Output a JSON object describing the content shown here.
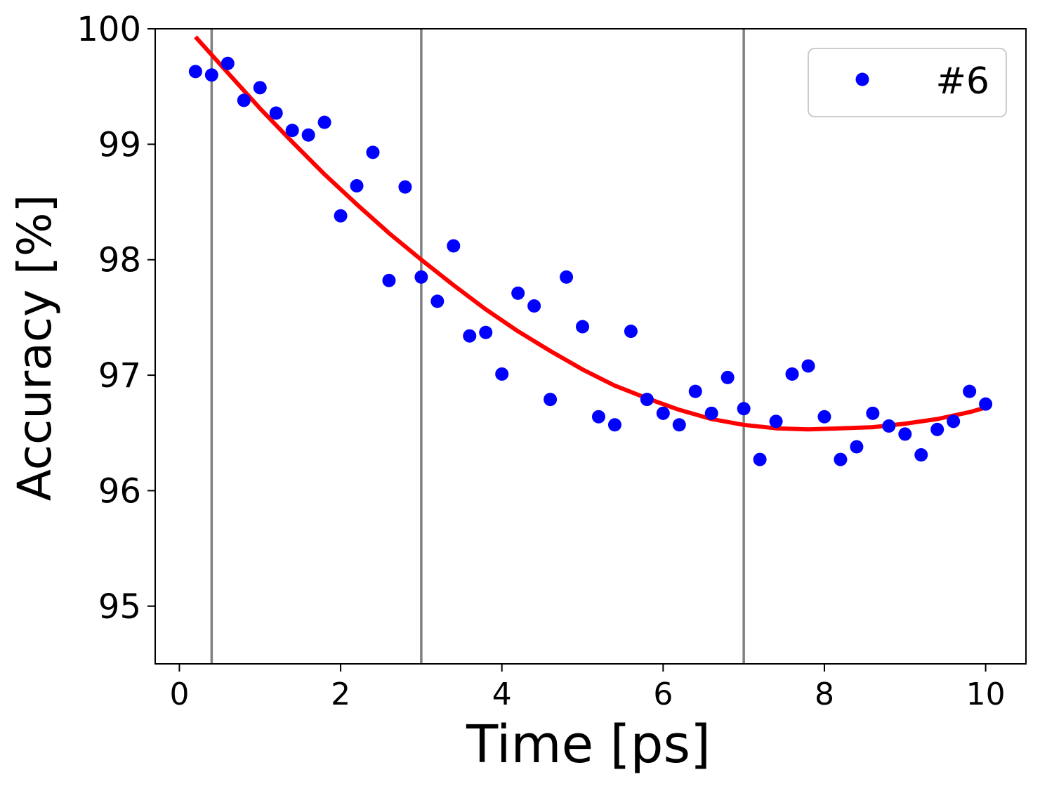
{
  "chart_data": {
    "type": "scatter",
    "xlabel": "Time [ps]",
    "ylabel": "Accuracy [%]",
    "xlim": [
      -0.3,
      10.5
    ],
    "ylim": [
      94.5,
      100
    ],
    "xticks": [
      0,
      2,
      4,
      6,
      8,
      10
    ],
    "yticks": [
      95,
      96,
      97,
      98,
      99,
      100
    ],
    "grid": false,
    "legend_position": "top-right",
    "vertical_lines": {
      "x": [
        0.4,
        3,
        7
      ],
      "color": "#808080"
    },
    "series": [
      {
        "name": "#6",
        "type": "scatter",
        "color": "#0000ff",
        "x": [
          0.2,
          0.4,
          0.6,
          0.8,
          1.0,
          1.2,
          1.4,
          1.6,
          1.8,
          2.0,
          2.2,
          2.4,
          2.6,
          2.8,
          3.0,
          3.2,
          3.4,
          3.6,
          3.8,
          4.0,
          4.2,
          4.4,
          4.6,
          4.8,
          5.0,
          5.2,
          5.4,
          5.6,
          5.8,
          6.0,
          6.2,
          6.4,
          6.6,
          6.8,
          7.0,
          7.2,
          7.4,
          7.6,
          7.8,
          8.0,
          8.2,
          8.4,
          8.6,
          8.8,
          9.0,
          9.2,
          9.4,
          9.6,
          9.8,
          10.0
        ],
        "y": [
          99.63,
          99.6,
          99.7,
          99.38,
          99.49,
          99.27,
          99.12,
          99.08,
          99.19,
          98.38,
          98.64,
          98.93,
          97.82,
          98.63,
          97.85,
          97.64,
          98.12,
          97.34,
          97.37,
          97.01,
          97.71,
          97.6,
          96.79,
          97.85,
          97.42,
          96.64,
          96.57,
          97.38,
          96.79,
          96.67,
          96.57,
          96.86,
          96.67,
          96.98,
          96.71,
          96.27,
          96.6,
          97.01,
          97.08,
          96.64,
          96.27,
          96.38,
          96.67,
          96.56,
          96.49,
          96.31,
          96.53,
          96.6,
          96.86,
          96.75
        ]
      },
      {
        "type": "line",
        "color": "#ff0000",
        "x": [
          0.2,
          0.6,
          1.0,
          1.4,
          1.8,
          2.2,
          2.6,
          3.0,
          3.4,
          3.8,
          4.2,
          4.6,
          5.0,
          5.4,
          5.8,
          6.2,
          6.6,
          7.0,
          7.4,
          7.8,
          8.2,
          8.6,
          9.0,
          9.4,
          9.8,
          10.0
        ],
        "y": [
          99.93,
          99.62,
          99.31,
          99.02,
          98.74,
          98.48,
          98.23,
          98.0,
          97.78,
          97.57,
          97.38,
          97.21,
          97.05,
          96.91,
          96.8,
          96.7,
          96.62,
          96.57,
          96.54,
          96.53,
          96.54,
          96.55,
          96.58,
          96.62,
          96.68,
          96.72
        ]
      }
    ]
  }
}
